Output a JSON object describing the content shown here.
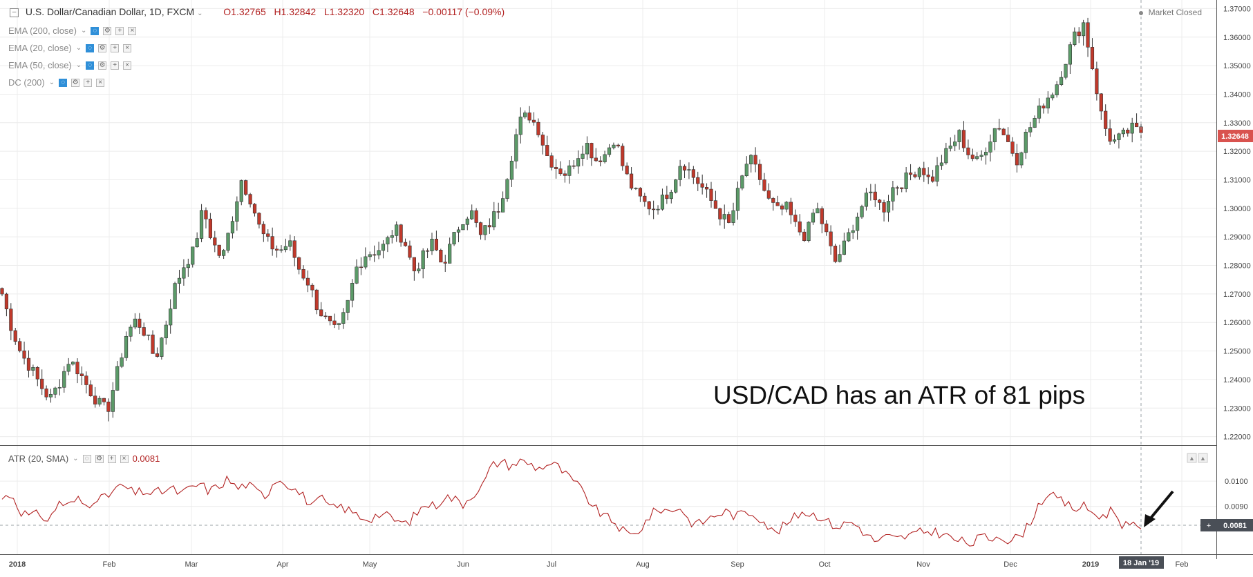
{
  "header": {
    "symbol": "U.S. Dollar/Canadian Dollar, 1D, FXCM",
    "open": "O1.32765",
    "high": "H1.32842",
    "low": "L1.32320",
    "close": "C1.32648",
    "change": "−0.00117 (−0.09%)",
    "market_status": "Market Closed"
  },
  "indicators": [
    {
      "label": "EMA (200, close)"
    },
    {
      "label": "EMA (20, close)"
    },
    {
      "label": "EMA (50, close)"
    },
    {
      "label": "DC (200)"
    }
  ],
  "atr_legend": {
    "label": "ATR (20, SMA)",
    "value": "0.0081"
  },
  "annotation": "USD/CAD has an ATR of 81 pips",
  "price_badge": "1.32648",
  "atr_badge": "0.0081",
  "date_badge": "18 Jan '19",
  "colors": {
    "up": "#5b9a68",
    "down": "#c0392b",
    "atr_line": "#b22222",
    "badge_red": "#d9534f",
    "badge_dark": "#4a4f57"
  },
  "chart_data": [
    {
      "type": "candlestick",
      "title": "U.S. Dollar/Canadian Dollar, 1D, FXCM",
      "x_tick_labels": [
        "2018",
        "Feb",
        "Mar",
        "Apr",
        "May",
        "Jun",
        "Jul",
        "Aug",
        "Sep",
        "Oct",
        "Nov",
        "Dec",
        "2019",
        "18 Jan '19",
        "Feb"
      ],
      "y_tick_labels": [
        "1.37000",
        "1.36000",
        "1.35000",
        "1.34000",
        "1.33000",
        "1.32000",
        "1.31000",
        "1.30000",
        "1.29000",
        "1.28000",
        "1.27000",
        "1.26000",
        "1.25000",
        "1.24000",
        "1.23000",
        "1.22000"
      ],
      "ylim": [
        1.217,
        1.373
      ],
      "grid": true,
      "last_close": 1.32648,
      "path_closes": [
        1.27,
        1.258,
        1.249,
        1.244,
        1.238,
        1.233,
        1.239,
        1.247,
        1.243,
        1.237,
        1.232,
        1.229,
        1.242,
        1.256,
        1.261,
        1.256,
        1.247,
        1.258,
        1.272,
        1.28,
        1.285,
        1.3,
        1.288,
        1.282,
        1.296,
        1.31,
        1.303,
        1.292,
        1.287,
        1.285,
        1.288,
        1.279,
        1.274,
        1.265,
        1.26,
        1.256,
        1.265,
        1.279,
        1.284,
        1.285,
        1.287,
        1.293,
        1.289,
        1.278,
        1.283,
        1.288,
        1.28,
        1.288,
        1.296,
        1.299,
        1.29,
        1.295,
        1.301,
        1.315,
        1.33,
        1.333,
        1.328,
        1.318,
        1.314,
        1.312,
        1.318,
        1.323,
        1.317,
        1.319,
        1.325,
        1.313,
        1.306,
        1.302,
        1.3,
        1.303,
        1.308,
        1.317,
        1.312,
        1.308,
        1.303,
        1.298,
        1.294,
        1.307,
        1.318,
        1.312,
        1.303,
        1.299,
        1.3,
        1.293,
        1.29,
        1.301,
        1.292,
        1.281,
        1.287,
        1.295,
        1.302,
        1.306,
        1.299,
        1.307,
        1.309,
        1.312,
        1.315,
        1.309,
        1.316,
        1.321,
        1.326,
        1.319,
        1.316,
        1.323,
        1.33,
        1.324,
        1.317,
        1.326,
        1.332,
        1.338,
        1.342,
        1.351,
        1.36,
        1.365,
        1.348,
        1.33,
        1.323,
        1.325,
        1.328,
        1.3265
      ]
    },
    {
      "type": "line",
      "title": "ATR (20, SMA)",
      "y_tick_labels": [
        "0.0100",
        "0.0090"
      ],
      "ylim": [
        0.0071,
        0.0114
      ],
      "last_value": 0.0081,
      "x_tick_labels": [
        "2018",
        "Feb",
        "Mar",
        "Apr",
        "May",
        "Jun",
        "Jul",
        "Aug",
        "Sep",
        "Oct",
        "Nov",
        "Dec",
        "2019",
        "18 Jan '19",
        "Feb"
      ],
      "path_values": [
        0.0093,
        0.0095,
        0.0088,
        0.0086,
        0.0087,
        0.0084,
        0.0092,
        0.009,
        0.0093,
        0.009,
        0.0094,
        0.0093,
        0.0097,
        0.0098,
        0.0095,
        0.0096,
        0.0095,
        0.0096,
        0.0097,
        0.0095,
        0.0097,
        0.0099,
        0.0096,
        0.0098,
        0.0101,
        0.0097,
        0.0099,
        0.0096,
        0.0094,
        0.0101,
        0.01,
        0.0097,
        0.0094,
        0.009,
        0.0093,
        0.0089,
        0.009,
        0.0088,
        0.0086,
        0.0085,
        0.0087,
        0.0086,
        0.0084,
        0.0083,
        0.0087,
        0.0091,
        0.009,
        0.0094,
        0.0093,
        0.0091,
        0.0095,
        0.0098,
        0.0106,
        0.0108,
        0.0106,
        0.0108,
        0.0107,
        0.0105,
        0.0107,
        0.0106,
        0.0102,
        0.0099,
        0.0094,
        0.0089,
        0.0086,
        0.0084,
        0.008,
        0.0078,
        0.0082,
        0.0087,
        0.0089,
        0.0088,
        0.009,
        0.0084,
        0.0083,
        0.0085,
        0.0087,
        0.0088,
        0.0086,
        0.0088,
        0.0087,
        0.0084,
        0.0079,
        0.0082,
        0.0085,
        0.0088,
        0.0087,
        0.0086,
        0.0083,
        0.0082,
        0.0084,
        0.0082,
        0.0078,
        0.0076,
        0.0078,
        0.0077,
        0.0078,
        0.0079,
        0.008,
        0.008,
        0.0079,
        0.0077,
        0.0076,
        0.0075,
        0.0078,
        0.0077,
        0.0079,
        0.0076,
        0.0078,
        0.0082,
        0.009,
        0.0095,
        0.0093,
        0.0091,
        0.0089,
        0.009,
        0.0087,
        0.0086,
        0.0089,
        0.0083,
        0.0082,
        0.0081
      ]
    }
  ]
}
